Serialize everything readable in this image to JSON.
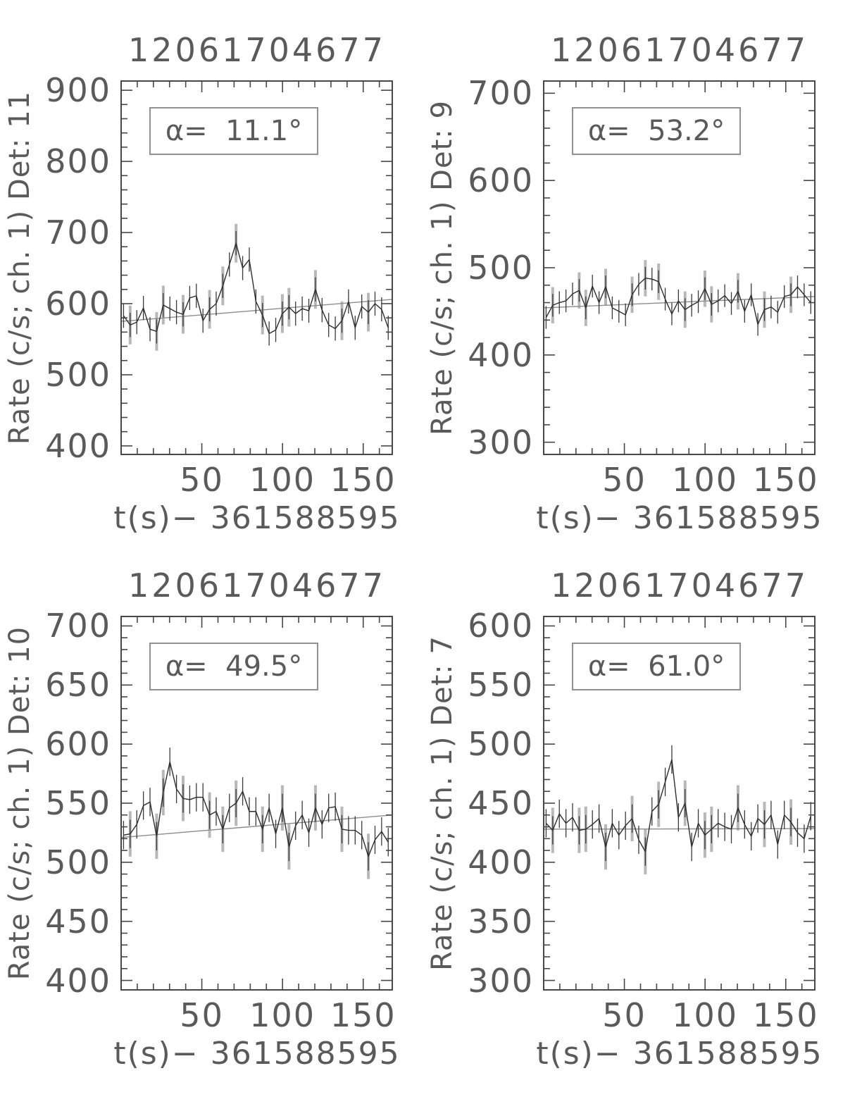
{
  "style": {
    "background": "#ffffff",
    "text_color": "#5a5a5a",
    "frame_color": "#474747",
    "data_line_color": "#2e2e2e",
    "error_bar_color": "#3a3a3a",
    "gray_error_bar_color": "#b8b8b8",
    "trend_line_color": "#8c8c8c",
    "annotation_border_color": "#909090"
  },
  "chart_data": [
    {
      "type": "line",
      "title": "12061704677",
      "ylabel": "Rate (c/s; ch. 1) Det: 11",
      "xlabel": "t(s)− 361588595",
      "annotation": "α=  11.1°",
      "legend": "none",
      "grid": false,
      "xlim": [
        0,
        168
      ],
      "xticks": [
        50,
        100,
        150
      ],
      "x_minor_step": 10,
      "ylim": [
        388,
        913
      ],
      "yticks": [
        400,
        500,
        600,
        700,
        800,
        900
      ],
      "y_minor_step": 20,
      "t_start": 1.5,
      "t_step": 4.1,
      "values": [
        583,
        570,
        574,
        594,
        564,
        561,
        598,
        593,
        588,
        585,
        608,
        611,
        576,
        592,
        600,
        625,
        655,
        685,
        650,
        662,
        603,
        584,
        558,
        563,
        586,
        595,
        586,
        593,
        590,
        620,
        591,
        570,
        565,
        576,
        603,
        566,
        596,
        588,
        600,
        592,
        566
      ],
      "err": 17,
      "gray_err_factor": 1.6,
      "gray_every": 4,
      "gray_offset": 1,
      "trend": [
        575,
        606
      ]
    },
    {
      "type": "line",
      "title": "12061704677",
      "ylabel": "Rate (c/s; ch. 1) Det: 9",
      "xlabel": "t(s)− 361588595",
      "annotation": "α=  53.2°",
      "legend": "none",
      "grid": false,
      "xlim": [
        0,
        168
      ],
      "xticks": [
        50,
        100,
        150
      ],
      "x_minor_step": 10,
      "ylim": [
        286,
        714
      ],
      "yticks": [
        300,
        400,
        500,
        600,
        700
      ],
      "y_minor_step": 20,
      "t_start": 1.5,
      "t_step": 4.1,
      "values": [
        443,
        457,
        460,
        462,
        470,
        474,
        454,
        479,
        460,
        478,
        454,
        450,
        446,
        469,
        481,
        488,
        487,
        484,
        464,
        447,
        462,
        452,
        457,
        461,
        476,
        458,
        462,
        468,
        459,
        473,
        450,
        469,
        435,
        452,
        455,
        449,
        467,
        469,
        478,
        469,
        460
      ],
      "err": 13,
      "gray_err_factor": 1.6,
      "gray_every": 4,
      "gray_offset": 1,
      "trend": [
        454,
        467
      ]
    },
    {
      "type": "line",
      "title": "12061704677",
      "ylabel": "Rate (c/s; ch. 1) Det: 10",
      "xlabel": "t(s)− 361588595",
      "annotation": "α=  49.5°",
      "legend": "none",
      "grid": false,
      "xlim": [
        0,
        168
      ],
      "xticks": [
        50,
        100,
        150
      ],
      "x_minor_step": 10,
      "ylim": [
        392,
        708
      ],
      "yticks": [
        400,
        450,
        500,
        550,
        600,
        650,
        700
      ],
      "y_minor_step": 10,
      "t_start": 1.5,
      "t_step": 4.1,
      "values": [
        523,
        524,
        532,
        548,
        551,
        522,
        559,
        585,
        562,
        554,
        553,
        555,
        555,
        540,
        543,
        528,
        546,
        550,
        560,
        543,
        543,
        528,
        546,
        524,
        546,
        513,
        531,
        540,
        525,
        546,
        532,
        546,
        547,
        528,
        527,
        527,
        523,
        505,
        519,
        526,
        517
      ],
      "err": 12,
      "gray_err_factor": 1.6,
      "gray_every": 4,
      "gray_offset": 1,
      "trend": [
        521,
        540
      ]
    },
    {
      "type": "line",
      "title": "12061704677",
      "ylabel": "Rate (c/s; ch. 1) Det: 7",
      "xlabel": "t(s)− 361588595",
      "annotation": "α=  61.0°",
      "legend": "none",
      "grid": false,
      "xlim": [
        0,
        168
      ],
      "xticks": [
        50,
        100,
        150
      ],
      "x_minor_step": 10,
      "ylim": [
        292,
        608
      ],
      "yticks": [
        300,
        350,
        400,
        450,
        500,
        550,
        600
      ],
      "y_minor_step": 10,
      "t_start": 1.5,
      "t_step": 4.1,
      "values": [
        433,
        427,
        441,
        433,
        438,
        427,
        428,
        432,
        437,
        413,
        433,
        423,
        431,
        437,
        419,
        409,
        443,
        449,
        468,
        487,
        438,
        450,
        413,
        433,
        423,
        428,
        433,
        430,
        428,
        446,
        432,
        422,
        437,
        432,
        440,
        415,
        440,
        434,
        425,
        420,
        439
      ],
      "err": 12,
      "gray_err_factor": 1.6,
      "gray_every": 4,
      "gray_offset": 1,
      "trend": [
        428,
        428.5
      ]
    }
  ]
}
